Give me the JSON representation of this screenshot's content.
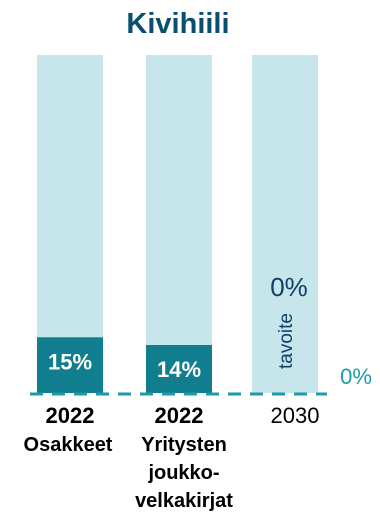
{
  "chart_data": {
    "type": "bar",
    "title": "Kivihiili",
    "ylim": [
      0,
      100
    ],
    "bars": [
      {
        "year": "2022",
        "category_lines": [
          "Osakkeet"
        ],
        "value": 15,
        "label": "15%",
        "year_bold": true
      },
      {
        "year": "2022",
        "category_lines": [
          "Yritysten",
          "joukko-",
          "velkakirjat"
        ],
        "value": 14,
        "label": "14%",
        "year_bold": true
      },
      {
        "year": "2030",
        "category_lines": [],
        "value": 0,
        "label": "0%",
        "year_bold": false,
        "note": "tavoite"
      }
    ],
    "target": {
      "value": 0,
      "label": "0%"
    },
    "colors": {
      "title": "#0a4f6e",
      "background_bar": "#c6e6ec",
      "value_bar": "#117e90",
      "value_label": "#ffffff",
      "target_line": "#1e9aa8",
      "target_label": "#1e9aa8",
      "note_text": "#123f6a"
    }
  }
}
